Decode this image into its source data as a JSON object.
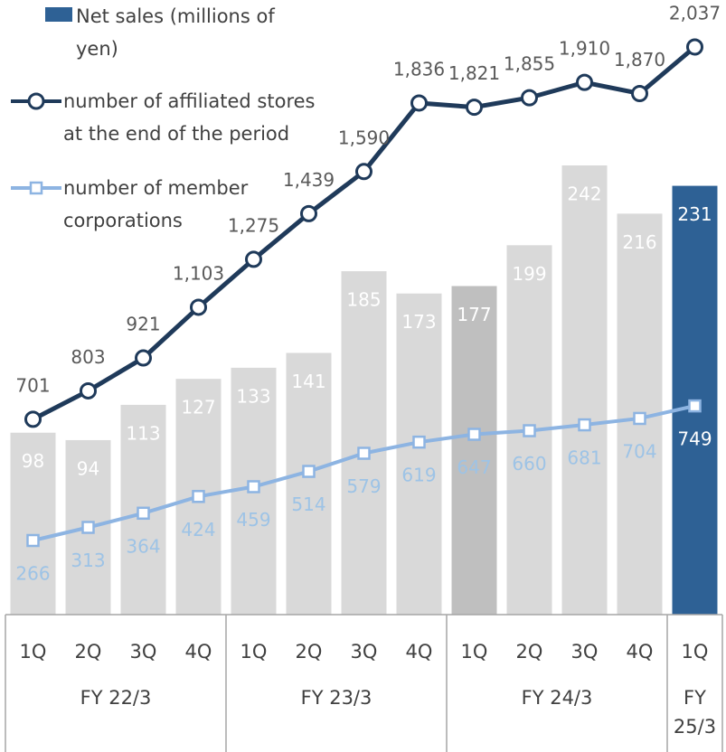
{
  "chart_data": {
    "type": "bar",
    "groups": [
      {
        "label": "FY 22/3",
        "categories": [
          "1Q",
          "2Q",
          "3Q",
          "4Q"
        ]
      },
      {
        "label": "FY 23/3",
        "categories": [
          "1Q",
          "2Q",
          "3Q",
          "4Q"
        ]
      },
      {
        "label": "FY 24/3",
        "categories": [
          "1Q",
          "2Q",
          "3Q",
          "4Q"
        ]
      },
      {
        "label": "FY 25/3",
        "categories": [
          "1Q"
        ]
      }
    ],
    "series": [
      {
        "name": "Net sales (millions of yen)",
        "type": "bar",
        "color": "#2e6195",
        "colors": [
          "#d9d9d9",
          "#d9d9d9",
          "#d9d9d9",
          "#d9d9d9",
          "#d9d9d9",
          "#d9d9d9",
          "#d9d9d9",
          "#d9d9d9",
          "#bfbfbf",
          "#d9d9d9",
          "#d9d9d9",
          "#d9d9d9",
          "#2e6195"
        ],
        "values": [
          98,
          94,
          113,
          127,
          133,
          141,
          185,
          173,
          177,
          199,
          242,
          216,
          231
        ]
      },
      {
        "name": "number of affiliated stores at the end of the period",
        "type": "line",
        "marker": "circle",
        "color": "#1f3a5a",
        "values": [
          701,
          803,
          921,
          1103,
          1275,
          1439,
          1590,
          1836,
          1821,
          1855,
          1910,
          1870,
          2037
        ],
        "value_labels": [
          "701",
          "803",
          "921",
          "1,103",
          "1,275",
          "1,439",
          "1,590",
          "1,836",
          "1,821",
          "1,855",
          "1,910",
          "1,870",
          "2,037"
        ]
      },
      {
        "name": "number of member corporations",
        "type": "line",
        "marker": "square",
        "color": "#8db4e2",
        "values": [
          266,
          313,
          364,
          424,
          459,
          514,
          579,
          619,
          647,
          660,
          681,
          704,
          749
        ]
      }
    ]
  }
}
